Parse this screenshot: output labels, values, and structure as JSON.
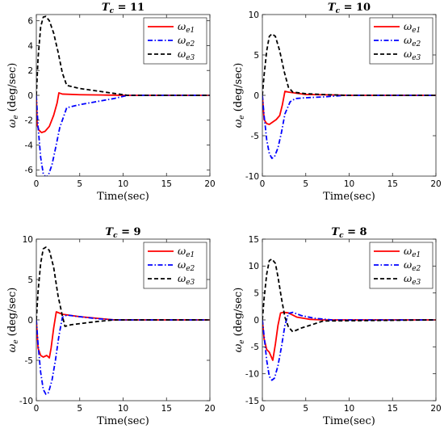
{
  "chart_data": [
    {
      "type": "line",
      "title": "T_c = 11",
      "title_main": "T",
      "title_sub": "c",
      "title_rest": " = 11",
      "xlabel": "Time(sec)",
      "ylabel_main": "ω",
      "ylabel_sub": "e",
      "ylabel_unit": " (deg/sec)",
      "xlim": [
        0,
        20
      ],
      "ylim": [
        -6.5,
        6.5
      ],
      "xticks": [
        "0",
        "5",
        "10",
        "15",
        "20"
      ],
      "yticks": [
        "-6",
        "-4",
        "-2",
        "0",
        "2",
        "4",
        "6"
      ],
      "ytick_values": [
        -6,
        -4,
        -2,
        0,
        2,
        4,
        6
      ],
      "grid": false,
      "legend_position": "top-right",
      "series": [
        {
          "name": "ω_e1",
          "name_main": "ω",
          "name_sub": "e1",
          "color": "#ff0000",
          "dash": "solid",
          "x": [
            0,
            0.1,
            0.3,
            0.6,
            1.0,
            1.5,
            2.0,
            2.4,
            2.6,
            3.0,
            5.0,
            8.0,
            10.5,
            20
          ],
          "y": [
            0,
            -2.4,
            -2.8,
            -3.0,
            -2.9,
            -2.5,
            -1.6,
            -0.6,
            0.2,
            0.1,
            0.05,
            0.02,
            0,
            0
          ]
        },
        {
          "name": "ω_e2",
          "name_main": "ω",
          "name_sub": "e2",
          "color": "#0000ff",
          "dash": "dashdot",
          "x": [
            0,
            0.2,
            0.5,
            0.8,
            1.1,
            1.4,
            1.8,
            2.2,
            2.7,
            3.5,
            5.0,
            7.0,
            9.0,
            10.5,
            20
          ],
          "y": [
            0,
            -2.5,
            -5.0,
            -6.3,
            -6.6,
            -6.4,
            -5.6,
            -4.3,
            -2.6,
            -1.0,
            -0.75,
            -0.5,
            -0.25,
            0,
            0
          ]
        },
        {
          "name": "ω_e3",
          "name_main": "ω",
          "name_sub": "e3",
          "color": "#000000",
          "dash": "dashed",
          "x": [
            0,
            0.2,
            0.5,
            0.8,
            1.1,
            1.5,
            2.0,
            2.5,
            3.0,
            3.5,
            5.0,
            7.0,
            9.0,
            10.5,
            20
          ],
          "y": [
            0,
            3.0,
            5.5,
            6.3,
            6.35,
            6.0,
            5.0,
            3.5,
            1.8,
            0.8,
            0.55,
            0.35,
            0.15,
            0,
            0
          ]
        }
      ]
    },
    {
      "type": "line",
      "title": "T_c = 10",
      "title_main": "T",
      "title_sub": "c",
      "title_rest": " = 10",
      "xlabel": "Time(sec)",
      "ylabel_main": "ω",
      "ylabel_sub": "e",
      "ylabel_unit": " (deg/sec)",
      "xlim": [
        0,
        20
      ],
      "ylim": [
        -10,
        10
      ],
      "xticks": [
        "0",
        "5",
        "10",
        "15",
        "20"
      ],
      "yticks": [
        "-10",
        "-5",
        "0",
        "5",
        "10"
      ],
      "ytick_values": [
        -10,
        -5,
        0,
        5,
        10
      ],
      "grid": false,
      "legend_position": "top-right",
      "series": [
        {
          "name": "ω_e1",
          "name_main": "ω",
          "name_sub": "e1",
          "color": "#ff0000",
          "dash": "solid",
          "x": [
            0,
            0.2,
            0.5,
            0.8,
            1.2,
            1.6,
            2.0,
            2.3,
            2.6,
            3.0,
            5.0,
            8.0,
            10,
            20
          ],
          "y": [
            0,
            -3.0,
            -3.5,
            -3.6,
            -3.3,
            -3.0,
            -2.5,
            -1.2,
            0.5,
            0.4,
            0.1,
            0.05,
            0,
            0
          ]
        },
        {
          "name": "ω_e2",
          "name_main": "ω",
          "name_sub": "e2",
          "color": "#0000ff",
          "dash": "dashdot",
          "x": [
            0,
            0.2,
            0.5,
            0.8,
            1.1,
            1.4,
            1.8,
            2.2,
            2.6,
            3.2,
            3.8,
            5.0,
            7.0,
            9.5,
            20
          ],
          "y": [
            0,
            -2.5,
            -5.5,
            -7.2,
            -7.8,
            -7.6,
            -6.5,
            -4.6,
            -2.3,
            -0.8,
            -0.4,
            -0.3,
            -0.2,
            0,
            0
          ]
        },
        {
          "name": "ω_e3",
          "name_main": "ω",
          "name_sub": "e3",
          "color": "#000000",
          "dash": "dashed",
          "x": [
            0,
            0.2,
            0.5,
            0.8,
            1.1,
            1.5,
            2.0,
            2.5,
            3.0,
            3.5,
            5.0,
            7.0,
            9.5,
            20
          ],
          "y": [
            0,
            2.5,
            5.5,
            7.3,
            7.6,
            7.3,
            5.5,
            3.0,
            1.0,
            0.4,
            0.2,
            0.1,
            0,
            0
          ]
        }
      ]
    },
    {
      "type": "line",
      "title": "T_c = 9",
      "title_main": "T",
      "title_sub": "c",
      "title_rest": " = 9",
      "xlabel": "Time(sec)",
      "ylabel_main": "ω",
      "ylabel_sub": "e",
      "ylabel_unit": " (deg/sec)",
      "xlim": [
        0,
        20
      ],
      "ylim": [
        -10,
        10
      ],
      "xticks": [
        "0",
        "5",
        "10",
        "15",
        "20"
      ],
      "yticks": [
        "-10",
        "-5",
        "0",
        "5",
        "10"
      ],
      "ytick_values": [
        -10,
        -5,
        0,
        5,
        10
      ],
      "grid": false,
      "legend_position": "top-right",
      "series": [
        {
          "name": "ω_e1",
          "name_main": "ω",
          "name_sub": "e1",
          "color": "#ff0000",
          "dash": "solid",
          "x": [
            0,
            0.2,
            0.5,
            0.8,
            1.2,
            1.5,
            1.7,
            2.0,
            2.3,
            3.0,
            5.0,
            7.0,
            9.0,
            20
          ],
          "y": [
            0,
            -3.5,
            -4.4,
            -4.6,
            -4.4,
            -4.7,
            -3.5,
            -1.0,
            1.0,
            0.7,
            0.4,
            0.2,
            0,
            0
          ]
        },
        {
          "name": "ω_e2",
          "name_main": "ω",
          "name_sub": "e2",
          "color": "#0000ff",
          "dash": "dashdot",
          "x": [
            0,
            0.2,
            0.5,
            0.8,
            1.1,
            1.4,
            1.8,
            2.2,
            2.6,
            3.0,
            3.5,
            5.0,
            7.0,
            9.0,
            20
          ],
          "y": [
            0,
            -3.0,
            -6.5,
            -8.6,
            -9.2,
            -9.0,
            -7.5,
            -5.0,
            -2.0,
            0.3,
            0.6,
            0.4,
            0.15,
            0,
            0
          ]
        },
        {
          "name": "ω_e3",
          "name_main": "ω",
          "name_sub": "e3",
          "color": "#000000",
          "dash": "dashed",
          "x": [
            0,
            0.2,
            0.5,
            0.8,
            1.1,
            1.5,
            2.0,
            2.5,
            3.0,
            3.3,
            4.0,
            5.5,
            7.0,
            9.0,
            20
          ],
          "y": [
            0,
            3.5,
            7.0,
            8.8,
            9.0,
            8.6,
            6.5,
            3.0,
            0.5,
            -0.8,
            -0.6,
            -0.4,
            -0.2,
            0,
            0
          ]
        }
      ]
    },
    {
      "type": "line",
      "title": "T_c = 8",
      "title_main": "T",
      "title_sub": "c",
      "title_rest": " = 8",
      "xlabel": "Time(sec)",
      "ylabel_main": "ω",
      "ylabel_sub": "e",
      "ylabel_unit": " (deg/sec)",
      "xlim": [
        0,
        20
      ],
      "ylim": [
        -15,
        15
      ],
      "xticks": [
        "0",
        "5",
        "10",
        "15",
        "20"
      ],
      "yticks": [
        "-15",
        "-10",
        "-5",
        "0",
        "5",
        "10",
        "15"
      ],
      "ytick_values": [
        -15,
        -10,
        -5,
        0,
        5,
        10,
        15
      ],
      "grid": false,
      "legend_position": "top-right",
      "series": [
        {
          "name": "ω_e1",
          "name_main": "ω",
          "name_sub": "e1",
          "color": "#ff0000",
          "dash": "solid",
          "x": [
            0,
            0.2,
            0.5,
            0.8,
            1.2,
            1.5,
            1.8,
            2.1,
            2.5,
            3.0,
            4.0,
            5.5,
            7.0,
            20
          ],
          "y": [
            0,
            -3.5,
            -5.5,
            -6.0,
            -7.5,
            -4.5,
            -1.0,
            1.3,
            1.4,
            1.3,
            0.5,
            0.1,
            0,
            0
          ]
        },
        {
          "name": "ω_e2",
          "name_main": "ω",
          "name_sub": "e2",
          "color": "#0000ff",
          "dash": "dashdot",
          "x": [
            0,
            0.2,
            0.5,
            0.8,
            1.1,
            1.4,
            1.8,
            2.2,
            2.6,
            3.0,
            3.5,
            4.5,
            6.0,
            8.0,
            20
          ],
          "y": [
            0,
            -3.0,
            -7.5,
            -10.5,
            -11.2,
            -10.8,
            -8.5,
            -5.0,
            -1.0,
            1.2,
            1.4,
            0.8,
            0.3,
            0,
            0
          ]
        },
        {
          "name": "ω_e3",
          "name_main": "ω",
          "name_sub": "e3",
          "color": "#000000",
          "dash": "dashed",
          "x": [
            0,
            0.2,
            0.5,
            0.8,
            1.1,
            1.5,
            1.8,
            2.2,
            2.6,
            3.0,
            3.5,
            4.5,
            5.5,
            7.0,
            20
          ],
          "y": [
            0,
            4.0,
            8.5,
            11.0,
            11.3,
            10.5,
            8.0,
            4.0,
            0.5,
            -1.3,
            -2.2,
            -1.5,
            -1.0,
            -0.2,
            0
          ]
        }
      ]
    }
  ]
}
